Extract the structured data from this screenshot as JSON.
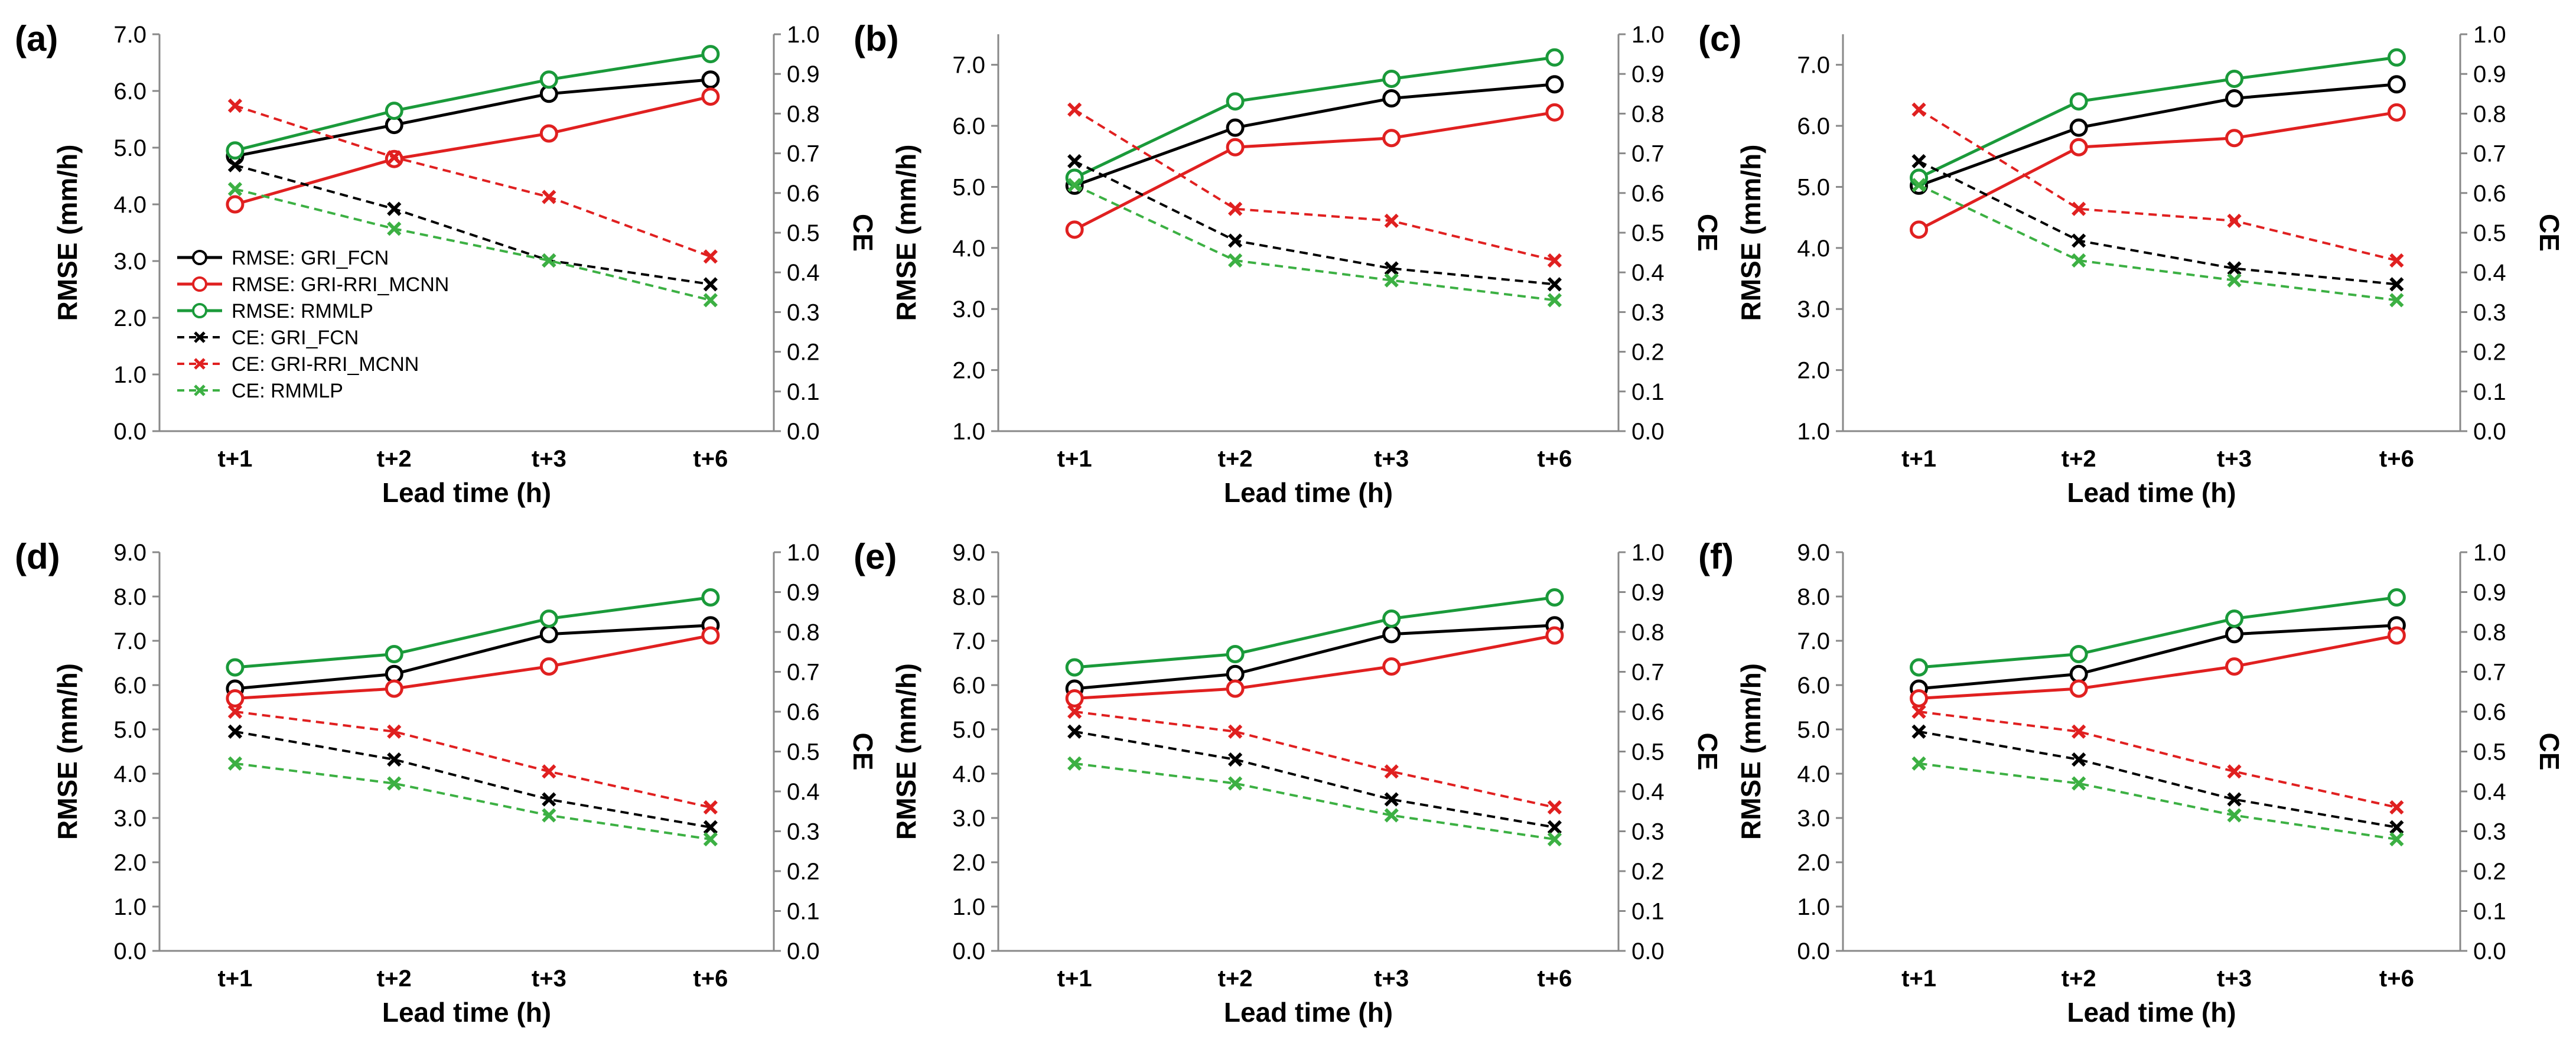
{
  "chart_data": [
    {
      "panel": "(a)",
      "type": "line",
      "categories": [
        "t+1",
        "t+2",
        "t+3",
        "t+6"
      ],
      "xlabel": "Lead time (h)",
      "ylabel_left": "RMSE (mm/h)",
      "ylabel_right": "CE",
      "ylim_left": [
        0,
        7
      ],
      "yticks_left": [
        "0.0",
        "1.0",
        "2.0",
        "3.0",
        "4.0",
        "5.0",
        "6.0",
        "7.0"
      ],
      "ylim_right": [
        0,
        1
      ],
      "yticks_right": [
        "0.0",
        "0.1",
        "0.2",
        "0.3",
        "0.4",
        "0.5",
        "0.6",
        "0.7",
        "0.8",
        "0.9",
        "1.0"
      ],
      "legend": "left",
      "series": [
        {
          "name": "RMSE: GRI_FCN",
          "axis": "left",
          "color": "#000000",
          "dash": false,
          "marker": "circle",
          "values": [
            4.85,
            5.4,
            5.95,
            6.2
          ]
        },
        {
          "name": "RMSE: GRI-RRI_MCNN",
          "axis": "left",
          "color": "#e02020",
          "dash": false,
          "marker": "circle",
          "values": [
            4.0,
            4.8,
            5.25,
            5.9
          ]
        },
        {
          "name": "RMSE: RMMLP",
          "axis": "left",
          "color": "#1a9a3a",
          "dash": false,
          "marker": "circle",
          "values": [
            4.95,
            5.65,
            6.2,
            6.65
          ]
        },
        {
          "name": "CE: GRI_FCN",
          "axis": "right",
          "color": "#000000",
          "dash": true,
          "marker": "x",
          "values": [
            0.67,
            0.56,
            0.43,
            0.37
          ]
        },
        {
          "name": "CE: GRI-RRI_MCNN",
          "axis": "right",
          "color": "#e02020",
          "dash": true,
          "marker": "x",
          "values": [
            0.82,
            0.69,
            0.59,
            0.44
          ]
        },
        {
          "name": "CE: RMMLP",
          "axis": "right",
          "color": "#3cb043",
          "dash": true,
          "marker": "x",
          "values": [
            0.61,
            0.51,
            0.43,
            0.33
          ]
        }
      ]
    },
    {
      "panel": "(b)",
      "type": "line",
      "categories": [
        "t+1",
        "t+2",
        "t+3",
        "t+6"
      ],
      "xlabel": "Lead time (h)",
      "ylabel_left": "RMSE (mm/h)",
      "ylabel_right": "CE",
      "ylim_left": [
        1,
        7.5
      ],
      "yticks_left": [
        "1.0",
        "2.0",
        "3.0",
        "4.0",
        "5.0",
        "6.0",
        "7.0"
      ],
      "ylim_right": [
        0,
        1
      ],
      "yticks_right": [
        "0.0",
        "0.1",
        "0.2",
        "0.3",
        "0.4",
        "0.5",
        "0.6",
        "0.7",
        "0.8",
        "0.9",
        "1.0"
      ],
      "legend": "none",
      "series": [
        {
          "name": "RMSE: GRI_FCN",
          "axis": "left",
          "color": "#000000",
          "dash": false,
          "marker": "circle",
          "values": [
            5.02,
            5.97,
            6.45,
            6.68
          ]
        },
        {
          "name": "RMSE: GRI-RRI_MCNN",
          "axis": "left",
          "color": "#e02020",
          "dash": false,
          "marker": "circle",
          "values": [
            4.3,
            5.65,
            5.8,
            6.22
          ]
        },
        {
          "name": "RMSE: RMMLP",
          "axis": "left",
          "color": "#1a9a3a",
          "dash": false,
          "marker": "circle",
          "values": [
            5.15,
            6.4,
            6.77,
            7.12
          ]
        },
        {
          "name": "CE: GRI_FCN",
          "axis": "right",
          "color": "#000000",
          "dash": true,
          "marker": "x",
          "values": [
            0.68,
            0.48,
            0.41,
            0.37
          ]
        },
        {
          "name": "CE: GRI-RRI_MCNN",
          "axis": "right",
          "color": "#e02020",
          "dash": true,
          "marker": "x",
          "values": [
            0.81,
            0.56,
            0.53,
            0.43
          ]
        },
        {
          "name": "CE: RMMLP",
          "axis": "right",
          "color": "#3cb043",
          "dash": true,
          "marker": "x",
          "values": [
            0.62,
            0.43,
            0.38,
            0.33
          ]
        }
      ]
    },
    {
      "panel": "(c)",
      "type": "line",
      "categories": [
        "t+1",
        "t+2",
        "t+3",
        "t+6"
      ],
      "xlabel": "Lead time (h)",
      "ylabel_left": "RMSE (mm/h)",
      "ylabel_right": "CE",
      "ylim_left": [
        1,
        7.5
      ],
      "yticks_left": [
        "1.0",
        "2.0",
        "3.0",
        "4.0",
        "5.0",
        "6.0",
        "7.0"
      ],
      "ylim_right": [
        0,
        1
      ],
      "yticks_right": [
        "0.0",
        "0.1",
        "0.2",
        "0.3",
        "0.4",
        "0.5",
        "0.6",
        "0.7",
        "0.8",
        "0.9",
        "1.0"
      ],
      "legend": "none",
      "series": [
        {
          "name": "RMSE: GRI_FCN",
          "axis": "left",
          "color": "#000000",
          "dash": false,
          "marker": "circle",
          "values": [
            5.02,
            5.97,
            6.45,
            6.68
          ]
        },
        {
          "name": "RMSE: GRI-RRI_MCNN",
          "axis": "left",
          "color": "#e02020",
          "dash": false,
          "marker": "circle",
          "values": [
            4.3,
            5.65,
            5.8,
            6.22
          ]
        },
        {
          "name": "RMSE: RMMLP",
          "axis": "left",
          "color": "#1a9a3a",
          "dash": false,
          "marker": "circle",
          "values": [
            5.15,
            6.4,
            6.77,
            7.12
          ]
        },
        {
          "name": "CE: GRI_FCN",
          "axis": "right",
          "color": "#000000",
          "dash": true,
          "marker": "x",
          "values": [
            0.68,
            0.48,
            0.41,
            0.37
          ]
        },
        {
          "name": "CE: GRI-RRI_MCNN",
          "axis": "right",
          "color": "#e02020",
          "dash": true,
          "marker": "x",
          "values": [
            0.81,
            0.56,
            0.53,
            0.43
          ]
        },
        {
          "name": "CE: RMMLP",
          "axis": "right",
          "color": "#3cb043",
          "dash": true,
          "marker": "x",
          "values": [
            0.62,
            0.43,
            0.38,
            0.33
          ]
        }
      ]
    },
    {
      "panel": "(d)",
      "type": "line",
      "categories": [
        "t+1",
        "t+2",
        "t+3",
        "t+6"
      ],
      "xlabel": "Lead time (h)",
      "ylabel_left": "RMSE (mm/h)",
      "ylabel_right": "CE",
      "ylim_left": [
        0,
        9
      ],
      "yticks_left": [
        "0.0",
        "1.0",
        "2.0",
        "3.0",
        "4.0",
        "5.0",
        "6.0",
        "7.0",
        "8.0",
        "9.0"
      ],
      "ylim_right": [
        0,
        1
      ],
      "yticks_right": [
        "0.0",
        "0.1",
        "0.2",
        "0.3",
        "0.4",
        "0.5",
        "0.6",
        "0.7",
        "0.8",
        "0.9",
        "1.0"
      ],
      "legend": "none",
      "series": [
        {
          "name": "RMSE: GRI_FCN",
          "axis": "left",
          "color": "#000000",
          "dash": false,
          "marker": "circle",
          "values": [
            5.92,
            6.25,
            7.15,
            7.35
          ]
        },
        {
          "name": "RMSE: GRI-RRI_MCNN",
          "axis": "left",
          "color": "#e02020",
          "dash": false,
          "marker": "circle",
          "values": [
            5.7,
            5.92,
            6.42,
            7.12
          ]
        },
        {
          "name": "RMSE: RMMLP",
          "axis": "left",
          "color": "#1a9a3a",
          "dash": false,
          "marker": "circle",
          "values": [
            6.4,
            6.7,
            7.5,
            7.98
          ]
        },
        {
          "name": "CE: GRI_FCN",
          "axis": "right",
          "color": "#000000",
          "dash": true,
          "marker": "x",
          "values": [
            0.55,
            0.48,
            0.38,
            0.31
          ]
        },
        {
          "name": "CE: GRI-RRI_MCNN",
          "axis": "right",
          "color": "#e02020",
          "dash": true,
          "marker": "x",
          "values": [
            0.6,
            0.55,
            0.45,
            0.36
          ]
        },
        {
          "name": "CE: RMMLP",
          "axis": "right",
          "color": "#3cb043",
          "dash": true,
          "marker": "x",
          "values": [
            0.47,
            0.42,
            0.34,
            0.28
          ]
        }
      ]
    },
    {
      "panel": "(e)",
      "type": "line",
      "categories": [
        "t+1",
        "t+2",
        "t+3",
        "t+6"
      ],
      "xlabel": "Lead time (h)",
      "ylabel_left": "RMSE (mm/h)",
      "ylabel_right": "CE",
      "ylim_left": [
        0,
        9
      ],
      "yticks_left": [
        "0.0",
        "1.0",
        "2.0",
        "3.0",
        "4.0",
        "5.0",
        "6.0",
        "7.0",
        "8.0",
        "9.0"
      ],
      "ylim_right": [
        0,
        1
      ],
      "yticks_right": [
        "0.0",
        "0.1",
        "0.2",
        "0.3",
        "0.4",
        "0.5",
        "0.6",
        "0.7",
        "0.8",
        "0.9",
        "1.0"
      ],
      "legend": "none",
      "series": [
        {
          "name": "RMSE: GRI_FCN",
          "axis": "left",
          "color": "#000000",
          "dash": false,
          "marker": "circle",
          "values": [
            5.92,
            6.25,
            7.15,
            7.35
          ]
        },
        {
          "name": "RMSE: GRI-RRI_MCNN",
          "axis": "left",
          "color": "#e02020",
          "dash": false,
          "marker": "circle",
          "values": [
            5.7,
            5.92,
            6.42,
            7.12
          ]
        },
        {
          "name": "RMSE: RMMLP",
          "axis": "left",
          "color": "#1a9a3a",
          "dash": false,
          "marker": "circle",
          "values": [
            6.4,
            6.7,
            7.5,
            7.98
          ]
        },
        {
          "name": "CE: GRI_FCN",
          "axis": "right",
          "color": "#000000",
          "dash": true,
          "marker": "x",
          "values": [
            0.55,
            0.48,
            0.38,
            0.31
          ]
        },
        {
          "name": "CE: GRI-RRI_MCNN",
          "axis": "right",
          "color": "#e02020",
          "dash": true,
          "marker": "x",
          "values": [
            0.6,
            0.55,
            0.45,
            0.36
          ]
        },
        {
          "name": "CE: RMMLP",
          "axis": "right",
          "color": "#3cb043",
          "dash": true,
          "marker": "x",
          "values": [
            0.47,
            0.42,
            0.34,
            0.28
          ]
        }
      ]
    },
    {
      "panel": "(f)",
      "type": "line",
      "categories": [
        "t+1",
        "t+2",
        "t+3",
        "t+6"
      ],
      "xlabel": "Lead time (h)",
      "ylabel_left": "RMSE (mm/h)",
      "ylabel_right": "CE",
      "ylim_left": [
        0,
        9
      ],
      "yticks_left": [
        "0.0",
        "1.0",
        "2.0",
        "3.0",
        "4.0",
        "5.0",
        "6.0",
        "7.0",
        "8.0",
        "9.0"
      ],
      "ylim_right": [
        0,
        1
      ],
      "yticks_right": [
        "0.0",
        "0.1",
        "0.2",
        "0.3",
        "0.4",
        "0.5",
        "0.6",
        "0.7",
        "0.8",
        "0.9",
        "1.0"
      ],
      "legend": "none",
      "series": [
        {
          "name": "RMSE: GRI_FCN",
          "axis": "left",
          "color": "#000000",
          "dash": false,
          "marker": "circle",
          "values": [
            5.92,
            6.25,
            7.15,
            7.35
          ]
        },
        {
          "name": "RMSE: GRI-RRI_MCNN",
          "axis": "left",
          "color": "#e02020",
          "dash": false,
          "marker": "circle",
          "values": [
            5.7,
            5.92,
            6.42,
            7.12
          ]
        },
        {
          "name": "RMSE: RMMLP",
          "axis": "left",
          "color": "#1a9a3a",
          "dash": false,
          "marker": "circle",
          "values": [
            6.4,
            6.7,
            7.5,
            7.98
          ]
        },
        {
          "name": "CE: GRI_FCN",
          "axis": "right",
          "color": "#000000",
          "dash": true,
          "marker": "x",
          "values": [
            0.55,
            0.48,
            0.38,
            0.31
          ]
        },
        {
          "name": "CE: GRI-RRI_MCNN",
          "axis": "right",
          "color": "#e02020",
          "dash": true,
          "marker": "x",
          "values": [
            0.6,
            0.55,
            0.45,
            0.36
          ]
        },
        {
          "name": "CE: RMMLP",
          "axis": "right",
          "color": "#3cb043",
          "dash": true,
          "marker": "x",
          "values": [
            0.47,
            0.42,
            0.34,
            0.28
          ]
        }
      ]
    }
  ]
}
